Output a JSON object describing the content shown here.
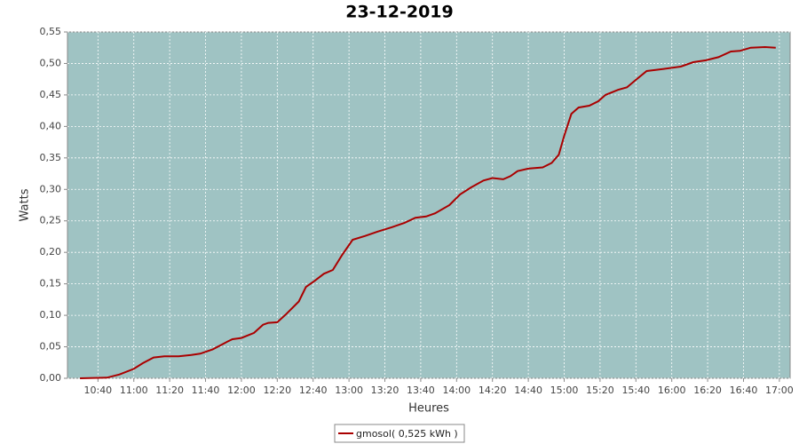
{
  "chart_data": {
    "type": "line",
    "title": "23-12-2019",
    "x_label": "Heures",
    "y_label": "Watts",
    "x": [
      "10:30",
      "10:45",
      "10:52",
      "11:00",
      "11:05",
      "11:11",
      "11:17",
      "11:25",
      "11:32",
      "11:37",
      "11:44",
      "11:52",
      "11:55",
      "12:00",
      "12:07",
      "12:12",
      "12:15",
      "12:20",
      "12:25",
      "12:32",
      "12:36",
      "12:41",
      "12:46",
      "12:51",
      "12:56",
      "13:02",
      "13:09",
      "13:16",
      "13:24",
      "13:31",
      "13:37",
      "13:43",
      "13:48",
      "13:56",
      "14:02",
      "14:08",
      "14:15",
      "14:20",
      "14:26",
      "14:30",
      "14:34",
      "14:40",
      "14:48",
      "14:53",
      "14:57",
      "15:00",
      "15:04",
      "15:08",
      "15:14",
      "15:19",
      "15:23",
      "15:30",
      "15:35",
      "15:40",
      "15:46",
      "15:55",
      "16:05",
      "16:12",
      "16:19",
      "16:26",
      "16:33",
      "16:38",
      "16:44",
      "16:52",
      "16:58"
    ],
    "series": [
      {
        "name": "gmosol( 0,525 kWh )",
        "color": "#aa0000",
        "values": [
          0,
          0.001,
          0.006,
          0.015,
          0.024,
          0.033,
          0.035,
          0.035,
          0.037,
          0.039,
          0.046,
          0.058,
          0.062,
          0.064,
          0.072,
          0.085,
          0.088,
          0.089,
          0.102,
          0.122,
          0.145,
          0.155,
          0.166,
          0.172,
          0.195,
          0.22,
          0.226,
          0.233,
          0.24,
          0.247,
          0.255,
          0.257,
          0.262,
          0.275,
          0.292,
          0.303,
          0.314,
          0.318,
          0.316,
          0.321,
          0.329,
          0.333,
          0.335,
          0.342,
          0.355,
          0.385,
          0.42,
          0.43,
          0.433,
          0.44,
          0.45,
          0.458,
          0.462,
          0.474,
          0.488,
          0.491,
          0.495,
          0.502,
          0.505,
          0.51,
          0.519,
          0.52,
          0.525,
          0.526,
          0.525
        ]
      }
    ],
    "xlim": [
      "10:23",
      "17:06"
    ],
    "xticks": [
      "10:40",
      "11:00",
      "11:20",
      "11:40",
      "12:00",
      "12:20",
      "12:40",
      "13:00",
      "13:20",
      "13:40",
      "14:00",
      "14:20",
      "14:40",
      "15:00",
      "15:20",
      "15:40",
      "16:00",
      "16:20",
      "16:40",
      "17:00"
    ],
    "ylim": [
      0,
      0.55
    ],
    "yticks": [
      {
        "value": 0,
        "label": "0,00"
      },
      {
        "value": 0.05,
        "label": "0,05"
      },
      {
        "value": 0.1,
        "label": "0,10"
      },
      {
        "value": 0.15,
        "label": "0,15"
      },
      {
        "value": 0.2,
        "label": "0,20"
      },
      {
        "value": 0.25,
        "label": "0,25"
      },
      {
        "value": 0.3,
        "label": "0,30"
      },
      {
        "value": 0.35,
        "label": "0,35"
      },
      {
        "value": 0.4,
        "label": "0,40"
      },
      {
        "value": 0.45,
        "label": "0,45"
      },
      {
        "value": 0.5,
        "label": "0,50"
      },
      {
        "value": 0.55,
        "label": "0,55"
      }
    ],
    "grid": true,
    "plot_background": "#9fc3c3",
    "legend_position": "bottom"
  }
}
